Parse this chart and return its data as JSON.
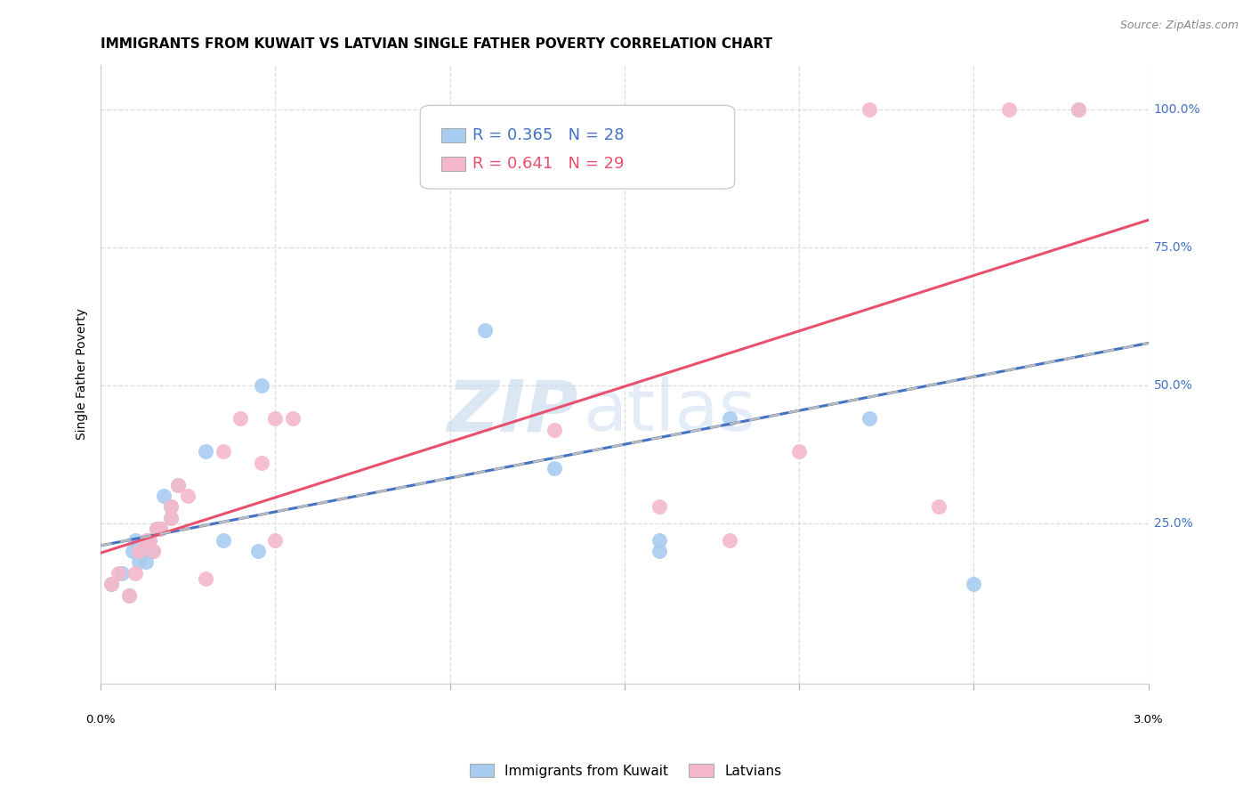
{
  "title": "IMMIGRANTS FROM KUWAIT VS LATVIAN SINGLE FATHER POVERTY CORRELATION CHART",
  "source": "Source: ZipAtlas.com",
  "ylabel": "Single Father Poverty",
  "legend_blue_r": "R = 0.365",
  "legend_blue_n": "N = 28",
  "legend_pink_r": "R = 0.641",
  "legend_pink_n": "N = 29",
  "legend_label_blue": "Immigrants from Kuwait",
  "legend_label_pink": "Latvians",
  "blue_fill": "#A8CCF0",
  "pink_fill": "#F5B8CB",
  "blue_line": "#4472C4",
  "pink_line": "#E8506E",
  "dashed_color": "#BBBBBB",
  "grid_color": "#DDDDDD",
  "bg_color": "#FFFFFF",
  "label_blue_color": "#4472C4",
  "xlim": [
    0.0,
    0.03
  ],
  "ylim": [
    -0.04,
    1.08
  ],
  "xtick_vals": [
    0.0,
    0.005,
    0.01,
    0.015,
    0.02,
    0.025,
    0.03
  ],
  "xtick_pct": [
    "0.0%",
    "",
    "",
    "",
    "",
    "",
    "3.0%"
  ],
  "ytick_vals": [
    0.25,
    0.5,
    0.75,
    1.0
  ],
  "ytick_labels": [
    "25.0%",
    "50.0%",
    "75.0%",
    "100.0%"
  ],
  "blue_x": [
    0.0003,
    0.0006,
    0.0008,
    0.0009,
    0.001,
    0.0011,
    0.0012,
    0.0013,
    0.0014,
    0.0015,
    0.0016,
    0.0017,
    0.0018,
    0.002,
    0.002,
    0.0022,
    0.003,
    0.0035,
    0.0045,
    0.0046,
    0.011,
    0.013,
    0.016,
    0.016,
    0.018,
    0.022,
    0.025,
    0.028
  ],
  "blue_y": [
    0.14,
    0.16,
    0.12,
    0.2,
    0.22,
    0.18,
    0.2,
    0.18,
    0.22,
    0.2,
    0.24,
    0.24,
    0.3,
    0.26,
    0.28,
    0.32,
    0.38,
    0.22,
    0.2,
    0.5,
    0.6,
    0.35,
    0.22,
    0.2,
    0.44,
    0.44,
    0.14,
    1.0
  ],
  "pink_x": [
    0.0003,
    0.0005,
    0.0008,
    0.001,
    0.0011,
    0.0013,
    0.0014,
    0.0015,
    0.0016,
    0.0017,
    0.002,
    0.002,
    0.0022,
    0.0025,
    0.003,
    0.0035,
    0.004,
    0.0046,
    0.005,
    0.005,
    0.0055,
    0.013,
    0.016,
    0.018,
    0.02,
    0.022,
    0.024,
    0.026,
    0.028
  ],
  "pink_y": [
    0.14,
    0.16,
    0.12,
    0.16,
    0.2,
    0.22,
    0.22,
    0.2,
    0.24,
    0.24,
    0.26,
    0.28,
    0.32,
    0.3,
    0.15,
    0.38,
    0.44,
    0.36,
    0.44,
    0.22,
    0.44,
    0.42,
    0.28,
    0.22,
    0.38,
    1.0,
    0.28,
    1.0,
    1.0
  ]
}
